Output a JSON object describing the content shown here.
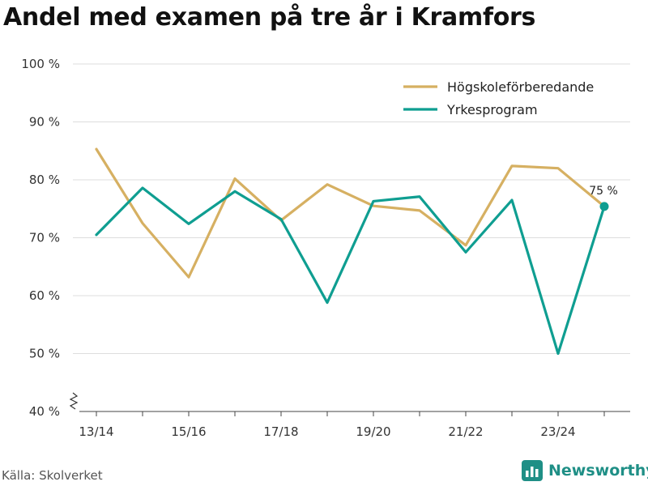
{
  "colors": {
    "series1": "#d6b062",
    "series2": "#0f9e91",
    "grid": "#dddddd",
    "brand": "#1f8f86"
  },
  "chart_data": {
    "type": "line",
    "title": "Andel med examen på tre år i Kramfors",
    "x": [
      "13/14",
      "14/15",
      "15/16",
      "16/17",
      "17/18",
      "18/19",
      "19/20",
      "20/21",
      "21/22",
      "22/23",
      "23/24",
      "24/25"
    ],
    "x_tick_labels": [
      "13/14",
      "15/16",
      "17/18",
      "19/20",
      "21/22",
      "23/24"
    ],
    "y_tick_labels": [
      "40 %",
      "50 %",
      "60 %",
      "70 %",
      "80 %",
      "90 %",
      "100 %"
    ],
    "y_ticks": [
      40,
      50,
      60,
      70,
      80,
      90,
      100
    ],
    "ylim": [
      40,
      100
    ],
    "xlabel": "",
    "ylabel": "",
    "legend_position": "top-right",
    "series": [
      {
        "name": "Högskoleförberedande",
        "color": "#d6b062",
        "values": [
          85.3,
          72.5,
          63.2,
          80.2,
          73.0,
          79.2,
          75.5,
          74.7,
          68.7,
          82.4,
          82.0,
          75.4
        ]
      },
      {
        "name": "Yrkesprogram",
        "color": "#0f9e91",
        "values": [
          70.5,
          78.6,
          72.4,
          78.0,
          73.2,
          58.8,
          76.3,
          77.1,
          67.5,
          76.5,
          50.0,
          75.4
        ]
      }
    ],
    "end_label": "75 %"
  },
  "source": "Källa: Skolverket",
  "brand": "Newsworthy"
}
